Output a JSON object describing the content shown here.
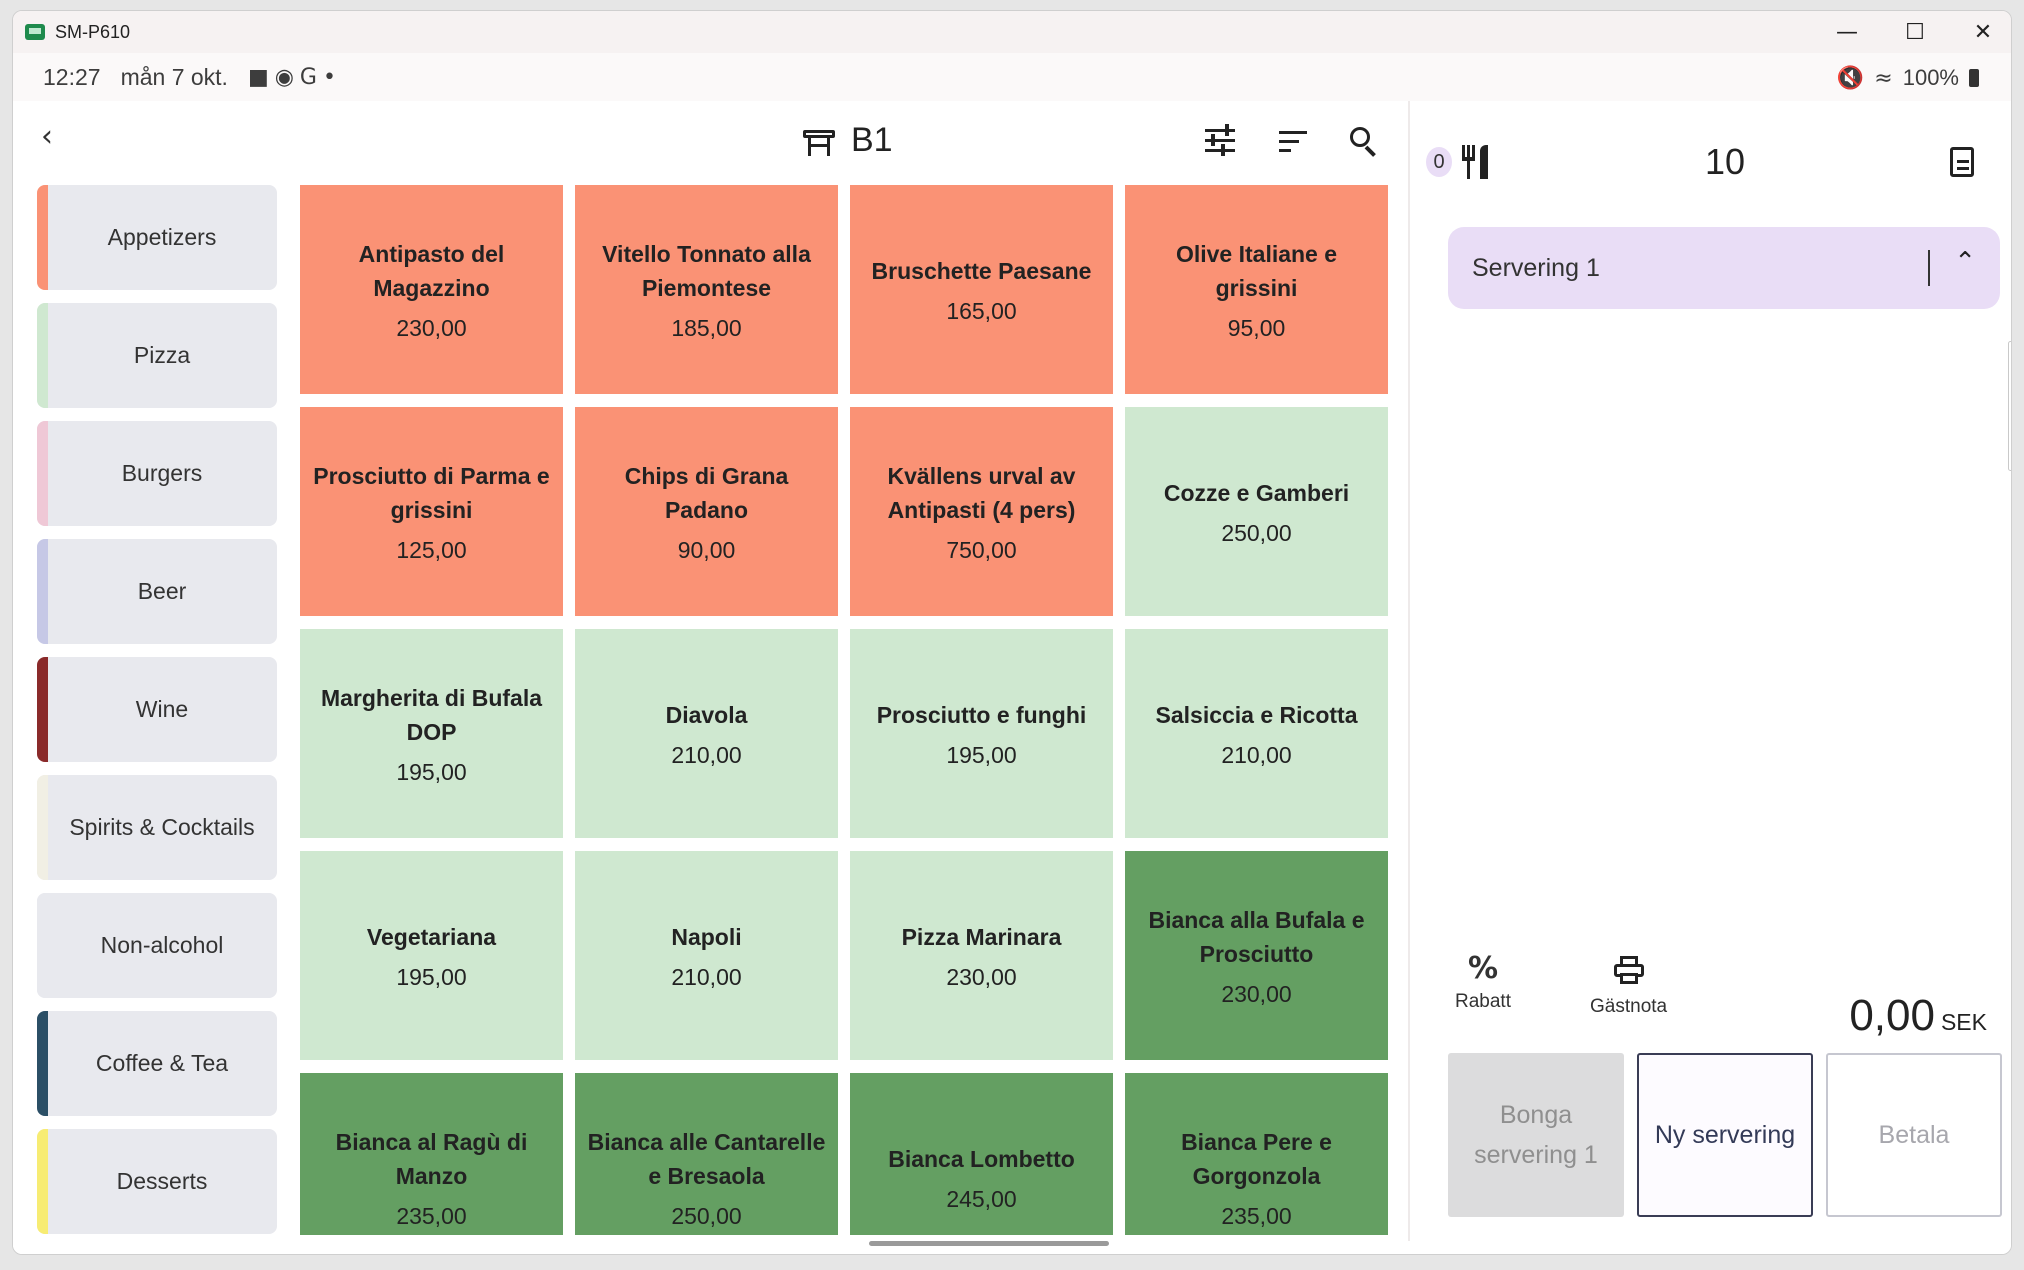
{
  "window": {
    "title": "SM-P610"
  },
  "status": {
    "time": "12:27",
    "date": "mån 7 okt.",
    "battery": "100%"
  },
  "header": {
    "table_name": "B1"
  },
  "categories": [
    {
      "label": "Appetizers",
      "color": "#fa9275"
    },
    {
      "label": "Pizza",
      "color": "#cfe8d0"
    },
    {
      "label": "Burgers",
      "color": "#efc8d6"
    },
    {
      "label": "Beer",
      "color": "#c6c8e6"
    },
    {
      "label": "Wine",
      "color": "#8a2a2a"
    },
    {
      "label": "Spirits & Cocktails",
      "color": "#f1efe4"
    },
    {
      "label": "Non-alcohol",
      "color": "#e8e9ee"
    },
    {
      "label": "Coffee & Tea",
      "color": "#2b4f66"
    },
    {
      "label": "Desserts",
      "color": "#f7ec73"
    }
  ],
  "products": [
    {
      "name": "Antipasto del Magazzino",
      "price": "230,00"
    },
    {
      "name": "Vitello Tonnato alla Piemontese",
      "price": "185,00"
    },
    {
      "name": "Bruschette Paesane",
      "price": "165,00"
    },
    {
      "name": "Olive Italiane e grissini",
      "price": "95,00"
    },
    {
      "name": "Prosciutto di Parma e grissini",
      "price": "125,00"
    },
    {
      "name": "Chips di Grana Padano",
      "price": "90,00"
    },
    {
      "name": "Kvällens urval av Antipasti (4 pers)",
      "price": "750,00"
    },
    {
      "name": "Cozze e Gamberi",
      "price": "250,00"
    },
    {
      "name": "Margherita di Bufala DOP",
      "price": "195,00"
    },
    {
      "name": "Diavola",
      "price": "210,00"
    },
    {
      "name": "Prosciutto e funghi",
      "price": "195,00"
    },
    {
      "name": "Salsiccia e Ricotta",
      "price": "210,00"
    },
    {
      "name": "Vegetariana",
      "price": "195,00"
    },
    {
      "name": "Napoli",
      "price": "210,00"
    },
    {
      "name": "Pizza Marinara",
      "price": "230,00"
    },
    {
      "name": "Bianca alla Bufala e Prosciutto",
      "price": "230,00"
    },
    {
      "name": "Bianca al Ragù di Manzo",
      "price": "235,00"
    },
    {
      "name": "Bianca alle Cantarelle e Bresaola",
      "price": "250,00"
    },
    {
      "name": "Bianca Lombetto",
      "price": "245,00"
    },
    {
      "name": "Bianca Pere e Gorgonzola",
      "price": "235,00"
    }
  ],
  "order": {
    "guests": "0",
    "count": "10",
    "serving_label": "Servering 1",
    "discount_label": "Rabatt",
    "guest_receipt_label": "Gästnota",
    "total": "0,00",
    "currency": "SEK"
  },
  "buttons": {
    "bonga": "Bonga servering 1",
    "new_serving": "Ny servering",
    "pay": "Betala"
  }
}
